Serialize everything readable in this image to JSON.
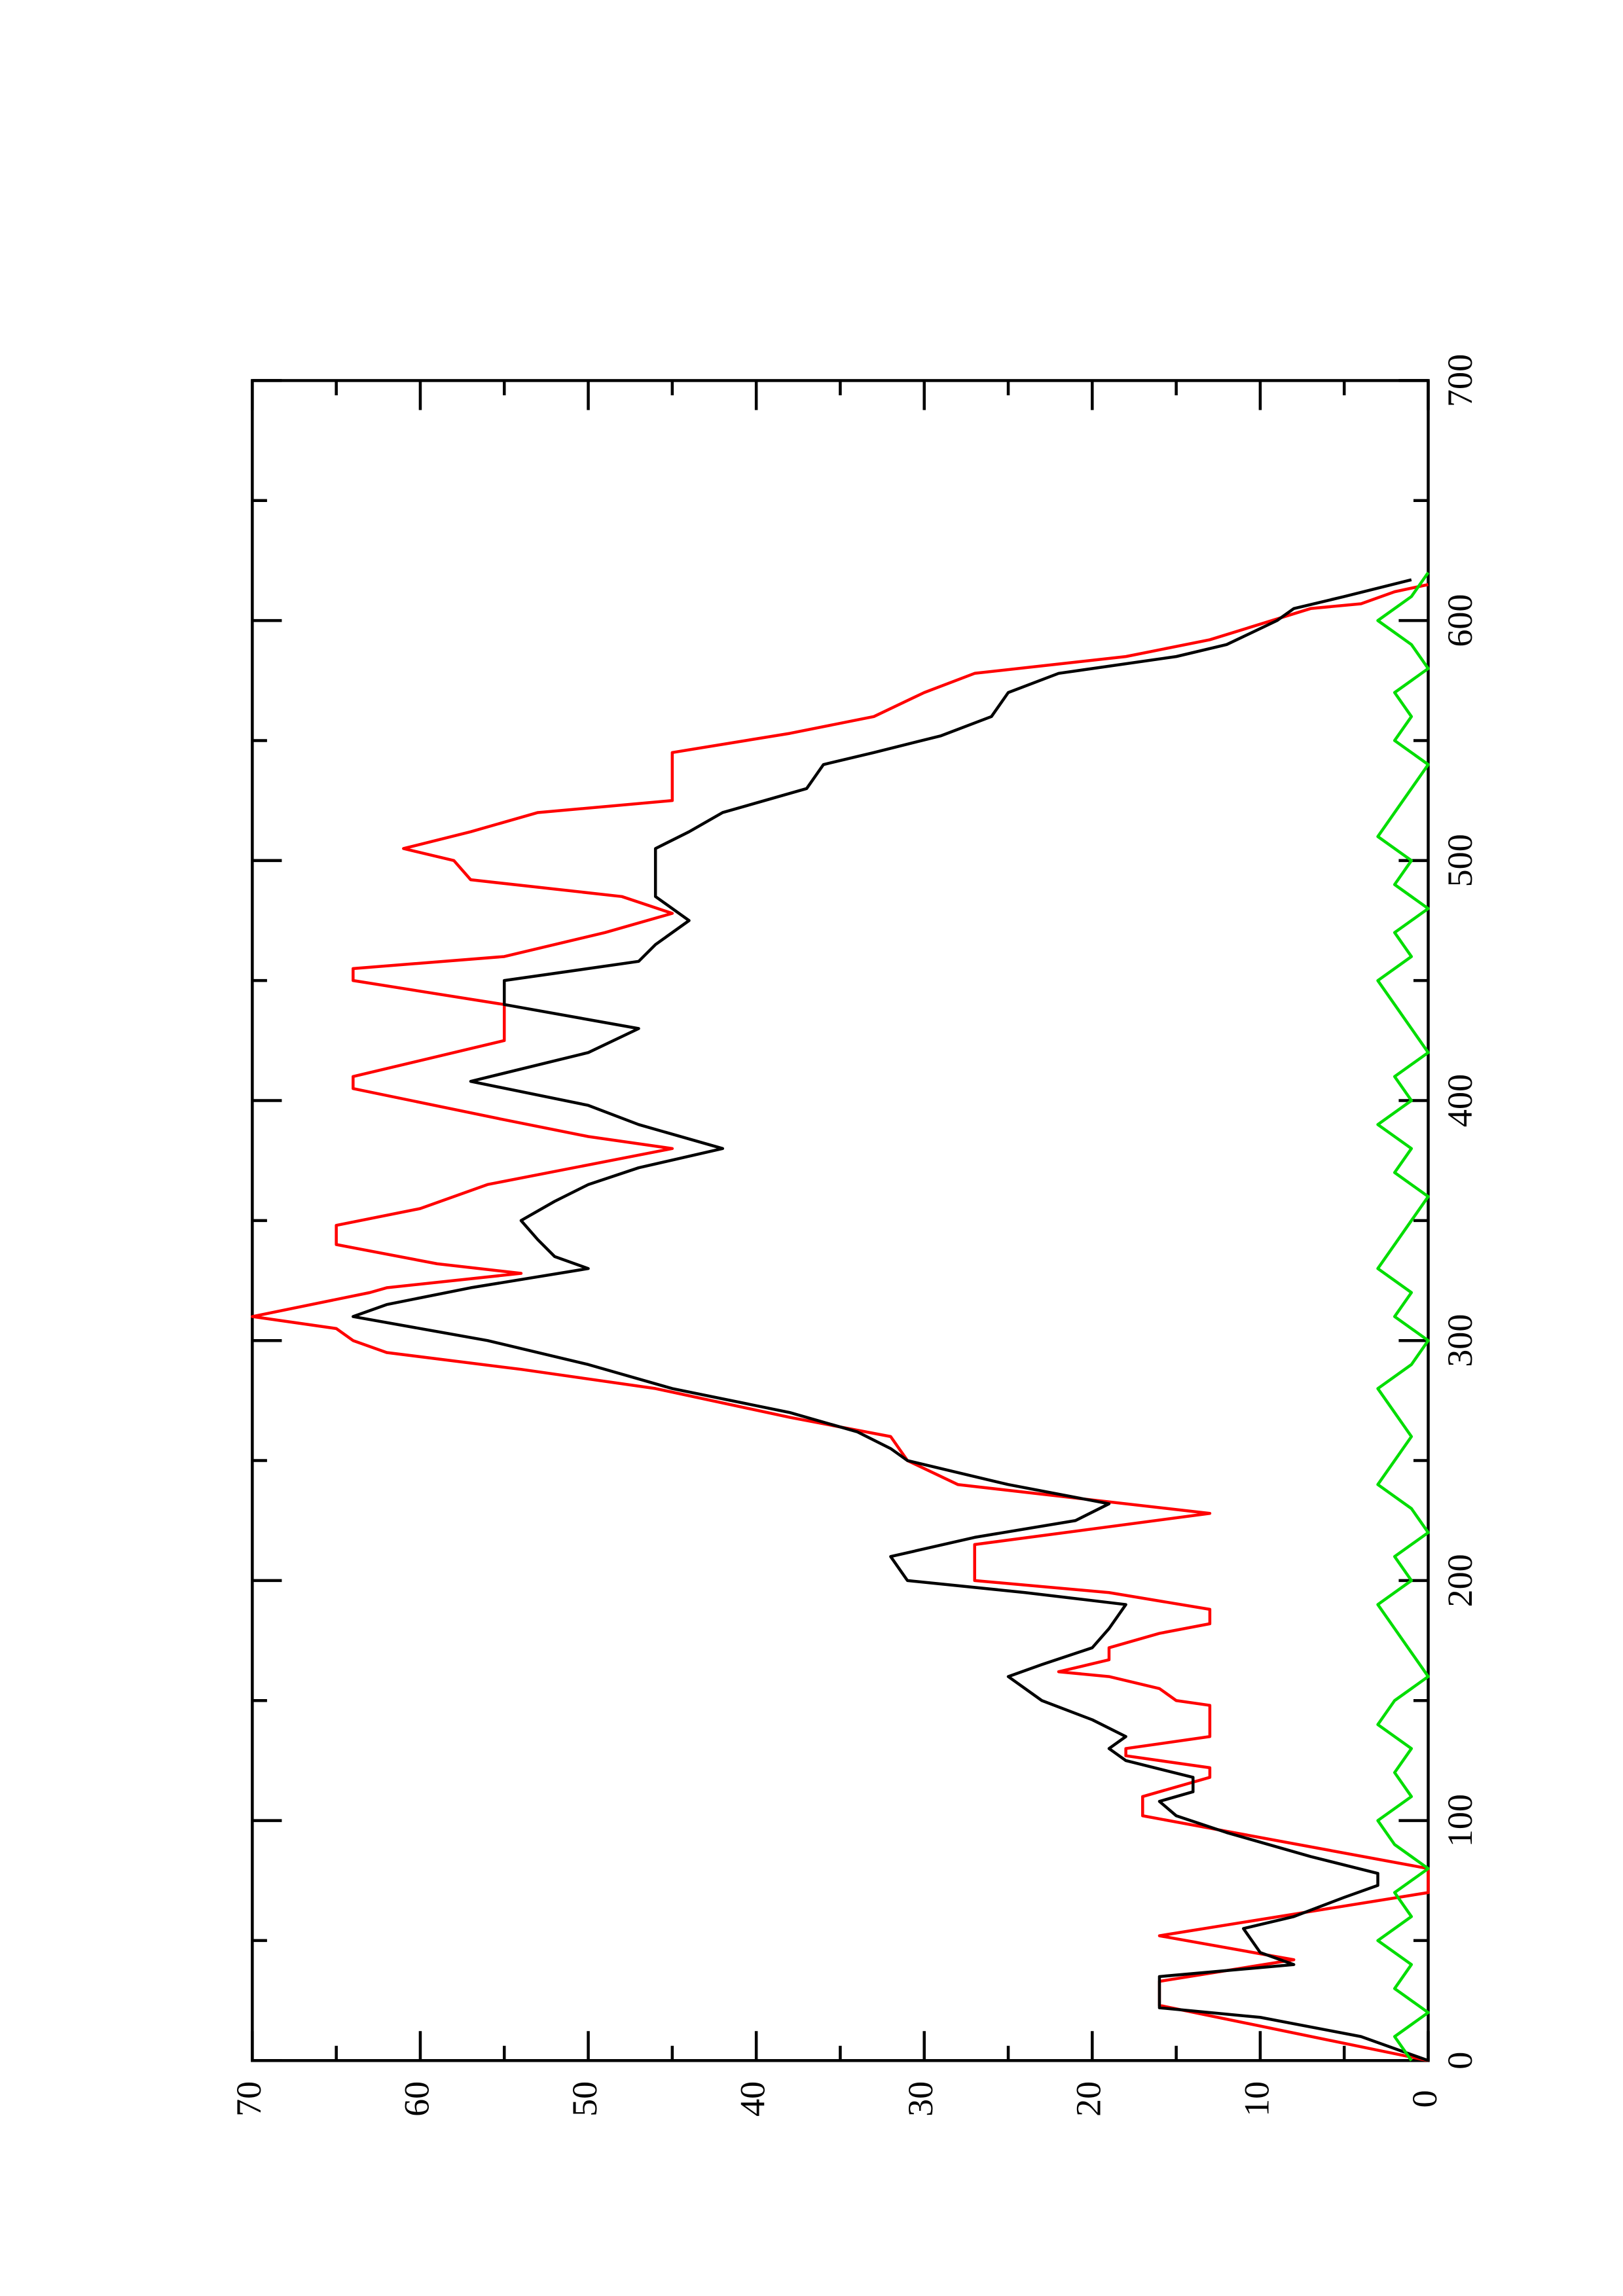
{
  "chart_data": {
    "type": "line",
    "orientation": "rotated",
    "xlim": [
      0,
      700
    ],
    "xticks": [
      0,
      100,
      200,
      300,
      400,
      500,
      600,
      700
    ],
    "x_minor_ticks": [
      50,
      150,
      250,
      350,
      450,
      550,
      650
    ],
    "ylim": [
      0,
      70
    ],
    "yticks": [
      0,
      10,
      20,
      30,
      40,
      50,
      60,
      70
    ],
    "y_minor_ticks": [
      5,
      15,
      25,
      35,
      45,
      55,
      65
    ],
    "series": [
      {
        "color": "#ff0000",
        "x": [
          0,
          23,
          33,
          42,
          52,
          70,
          80,
          102,
          110,
          118,
          122,
          127,
          130,
          135,
          148,
          150,
          155,
          160,
          162,
          167,
          172,
          178,
          182,
          188,
          195,
          200,
          215,
          228,
          240,
          250,
          260,
          268,
          280,
          288,
          295,
          300,
          305,
          310,
          320,
          322,
          328,
          332,
          340,
          348,
          355,
          365,
          380,
          385,
          392,
          405,
          410,
          425,
          440,
          450,
          455,
          460,
          470,
          478,
          485,
          492,
          500,
          505,
          512,
          520,
          525,
          545,
          553,
          560,
          570,
          578,
          585,
          592,
          605,
          607,
          612,
          615
        ],
        "values": [
          0,
          16,
          16,
          8,
          16,
          0,
          0,
          17,
          17,
          13,
          13,
          18,
          18,
          13,
          13,
          15,
          16,
          19,
          22,
          19,
          19,
          16,
          13,
          13,
          19,
          27,
          27,
          13,
          28,
          31,
          32,
          38,
          46,
          54,
          62,
          64,
          65,
          70,
          63,
          62,
          54,
          59,
          65,
          65,
          60,
          56,
          45,
          50,
          55,
          64,
          64,
          55,
          55,
          64,
          64,
          55,
          49,
          45,
          48,
          57,
          58,
          61,
          57,
          53,
          45,
          45,
          38,
          33,
          30,
          27,
          18,
          13,
          7,
          4,
          2,
          0
        ]
      },
      {
        "color": "#000000",
        "x": [
          0,
          10,
          18,
          22,
          35,
          40,
          45,
          55,
          60,
          68,
          73,
          78,
          85,
          95,
          102,
          108,
          112,
          118,
          125,
          130,
          135,
          142,
          150,
          160,
          165,
          172,
          180,
          190,
          195,
          200,
          210,
          218,
          225,
          232,
          240,
          250,
          255,
          262,
          270,
          280,
          290,
          300,
          310,
          315,
          322,
          330,
          335,
          342,
          350,
          358,
          365,
          372,
          380,
          390,
          398,
          408,
          420,
          430,
          440,
          450,
          458,
          465,
          475,
          485,
          495,
          505,
          512,
          520,
          530,
          540,
          545,
          552,
          560,
          570,
          578,
          585,
          590,
          600,
          605,
          610,
          617
        ],
        "values": [
          0,
          4,
          10,
          16,
          16,
          8,
          10,
          11,
          8,
          5,
          3,
          3,
          7,
          12,
          15,
          16,
          14,
          14,
          18,
          19,
          18,
          20,
          23,
          25,
          23,
          20,
          19,
          18,
          24,
          31,
          32,
          27,
          21,
          19,
          25,
          31,
          32,
          34,
          38,
          45,
          50,
          56,
          64,
          62,
          57,
          50,
          52,
          53,
          54,
          52,
          50,
          47,
          42,
          47,
          50,
          57,
          50,
          47,
          55,
          55,
          47,
          46,
          44,
          46,
          46,
          46,
          44,
          42,
          37,
          36,
          33,
          29,
          26,
          25,
          22,
          15,
          12,
          9,
          8,
          5,
          1
        ]
      },
      {
        "color": "#00dd00",
        "x": [
          0,
          10,
          20,
          30,
          40,
          50,
          60,
          70,
          80,
          90,
          100,
          110,
          120,
          130,
          140,
          150,
          160,
          170,
          180,
          190,
          200,
          210,
          220,
          230,
          240,
          250,
          260,
          270,
          280,
          290,
          300,
          310,
          320,
          330,
          340,
          350,
          360,
          370,
          380,
          390,
          400,
          410,
          420,
          430,
          440,
          450,
          460,
          470,
          480,
          490,
          500,
          510,
          520,
          530,
          540,
          550,
          560,
          570,
          580,
          590,
          600,
          610,
          620
        ],
        "values": [
          1,
          2,
          0,
          2,
          1,
          3,
          1,
          2,
          0,
          2,
          3,
          1,
          2,
          1,
          3,
          2,
          0,
          1,
          2,
          3,
          1,
          2,
          0,
          1,
          3,
          2,
          1,
          2,
          3,
          1,
          0,
          2,
          1,
          3,
          2,
          1,
          0,
          2,
          1,
          3,
          1,
          2,
          0,
          1,
          2,
          3,
          1,
          2,
          0,
          2,
          1,
          3,
          2,
          1,
          0,
          2,
          1,
          2,
          0,
          1,
          3,
          1,
          0
        ]
      }
    ]
  }
}
